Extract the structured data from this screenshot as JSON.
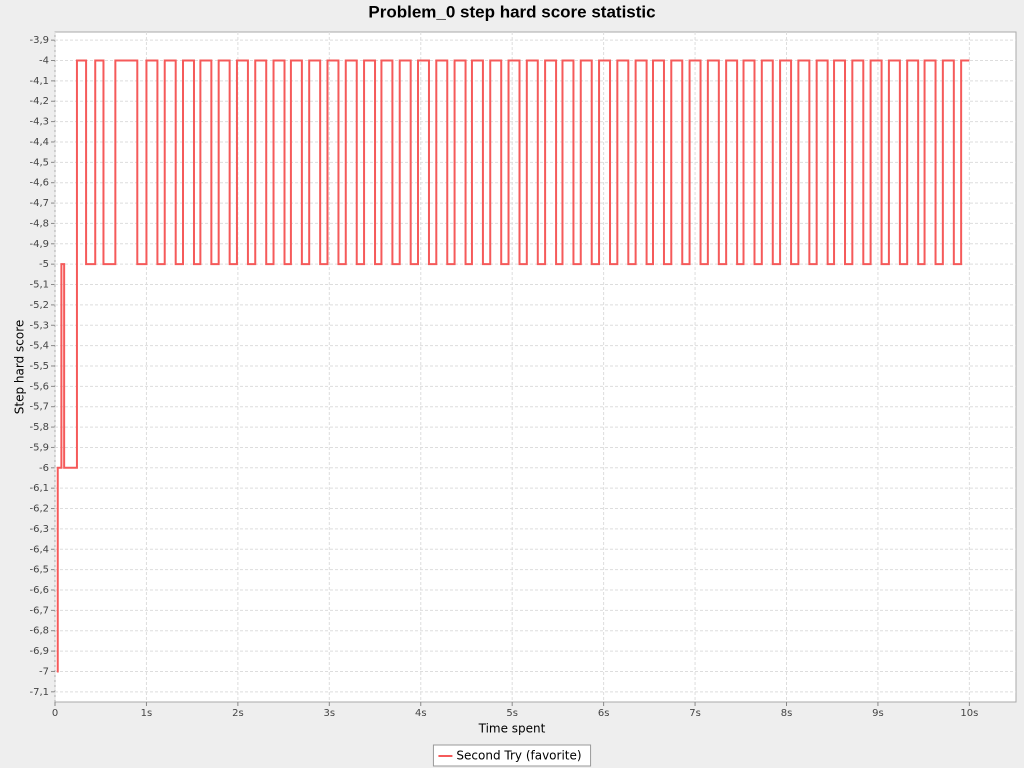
{
  "chart_data": {
    "type": "step-line",
    "title": "Problem_0 step hard score statistic",
    "x_label": "Time spent",
    "y_label": "Step hard score",
    "xlim": [
      0,
      10.51
    ],
    "ylim": [
      -7.15,
      -3.86
    ],
    "grid": true,
    "legend": "bottom",
    "xticks": [
      0,
      {
        "value": 1,
        "label": "1s"
      },
      {
        "value": 2,
        "label": "2s"
      },
      {
        "value": 3,
        "label": "3s"
      },
      {
        "value": 4,
        "label": "4s"
      },
      {
        "value": 5,
        "label": "5s"
      },
      {
        "value": 6,
        "label": "6s"
      },
      {
        "value": 7,
        "label": "7s"
      },
      {
        "value": 8,
        "label": "8s"
      },
      {
        "value": 9,
        "label": "9s"
      },
      {
        "value": 10,
        "label": "10s"
      }
    ],
    "yticks": [
      {
        "value": -3.9,
        "label": "-3,9"
      },
      -4,
      {
        "value": -4.1,
        "label": "-4,1"
      },
      {
        "value": -4.2,
        "label": "-4,2"
      },
      {
        "value": -4.3,
        "label": "-4,3"
      },
      {
        "value": -4.4,
        "label": "-4,4"
      },
      {
        "value": -4.5,
        "label": "-4,5"
      },
      {
        "value": -4.6,
        "label": "-4,6"
      },
      {
        "value": -4.7,
        "label": "-4,7"
      },
      {
        "value": -4.8,
        "label": "-4,8"
      },
      {
        "value": -4.9,
        "label": "-4,9"
      },
      -5,
      {
        "value": -5.1,
        "label": "-5,1"
      },
      {
        "value": -5.2,
        "label": "-5,2"
      },
      {
        "value": -5.3,
        "label": "-5,3"
      },
      {
        "value": -5.4,
        "label": "-5,4"
      },
      {
        "value": -5.5,
        "label": "-5,5"
      },
      {
        "value": -5.6,
        "label": "-5,6"
      },
      {
        "value": -5.7,
        "label": "-5,7"
      },
      {
        "value": -5.8,
        "label": "-5,8"
      },
      {
        "value": -5.9,
        "label": "-5,9"
      },
      -6,
      {
        "value": -6.1,
        "label": "-6,1"
      },
      {
        "value": -6.2,
        "label": "-6,2"
      },
      {
        "value": -6.3,
        "label": "-6,3"
      },
      {
        "value": -6.4,
        "label": "-6,4"
      },
      {
        "value": -6.5,
        "label": "-6,5"
      },
      {
        "value": -6.6,
        "label": "-6,6"
      },
      {
        "value": -6.7,
        "label": "-6,7"
      },
      {
        "value": -6.8,
        "label": "-6,8"
      },
      {
        "value": -6.9,
        "label": "-6,9"
      },
      -7,
      {
        "value": -7.1,
        "label": "-7,1"
      }
    ],
    "x": [
      0.02,
      0.03,
      0.07,
      0.1,
      0.24,
      0.34,
      0.44,
      0.53,
      0.66,
      0.9,
      1.0,
      1.12,
      1.2,
      1.32,
      1.4,
      1.52,
      1.59,
      1.71,
      1.79,
      1.91,
      1.99,
      2.11,
      2.19,
      2.31,
      2.39,
      2.51,
      2.58,
      2.7,
      2.78,
      2.9,
      2.98,
      3.1,
      3.18,
      3.3,
      3.38,
      3.5,
      3.57,
      3.69,
      3.77,
      3.89,
      3.97,
      4.09,
      4.17,
      4.29,
      4.37,
      4.49,
      4.56,
      4.68,
      4.76,
      4.88,
      4.96,
      5.08,
      5.16,
      5.28,
      5.36,
      5.48,
      5.55,
      5.67,
      5.75,
      5.87,
      5.95,
      6.07,
      6.15,
      6.27,
      6.35,
      6.47,
      6.54,
      6.66,
      6.74,
      6.86,
      6.94,
      7.06,
      7.14,
      7.26,
      7.34,
      7.46,
      7.53,
      7.65,
      7.73,
      7.85,
      7.93,
      8.05,
      8.13,
      8.25,
      8.33,
      8.45,
      8.52,
      8.64,
      8.72,
      8.84,
      8.92,
      9.04,
      9.12,
      9.24,
      9.32,
      9.44,
      9.51,
      9.63,
      9.71,
      9.83,
      9.91,
      10.0
    ],
    "series": [
      {
        "name": "Second Try (favorite)",
        "color": "#f55a5a",
        "values": [
          -7,
          -6,
          -5,
          -6,
          -4,
          -5,
          -4,
          -5,
          -4,
          -5,
          -4,
          -5,
          -4,
          -5,
          -4,
          -5,
          -4,
          -5,
          -4,
          -5,
          -4,
          -5,
          -4,
          -5,
          -4,
          -5,
          -4,
          -5,
          -4,
          -5,
          -4,
          -5,
          -4,
          -5,
          -4,
          -5,
          -4,
          -5,
          -4,
          -5,
          -4,
          -5,
          -4,
          -5,
          -4,
          -5,
          -4,
          -5,
          -4,
          -5,
          -4,
          -5,
          -4,
          -5,
          -4,
          -5,
          -4,
          -5,
          -4,
          -5,
          -4,
          -5,
          -4,
          -5,
          -4,
          -5,
          -4,
          -5,
          -4,
          -5,
          -4,
          -5,
          -4,
          -5,
          -4,
          -5,
          -4,
          -5,
          -4,
          -5,
          -4,
          -5,
          -4,
          -5,
          -4,
          -5,
          -4,
          -5,
          -4,
          -5,
          -4,
          -5,
          -4,
          -5,
          -4,
          -5,
          -4,
          -5,
          -4,
          -5,
          -4,
          -4
        ]
      }
    ]
  }
}
